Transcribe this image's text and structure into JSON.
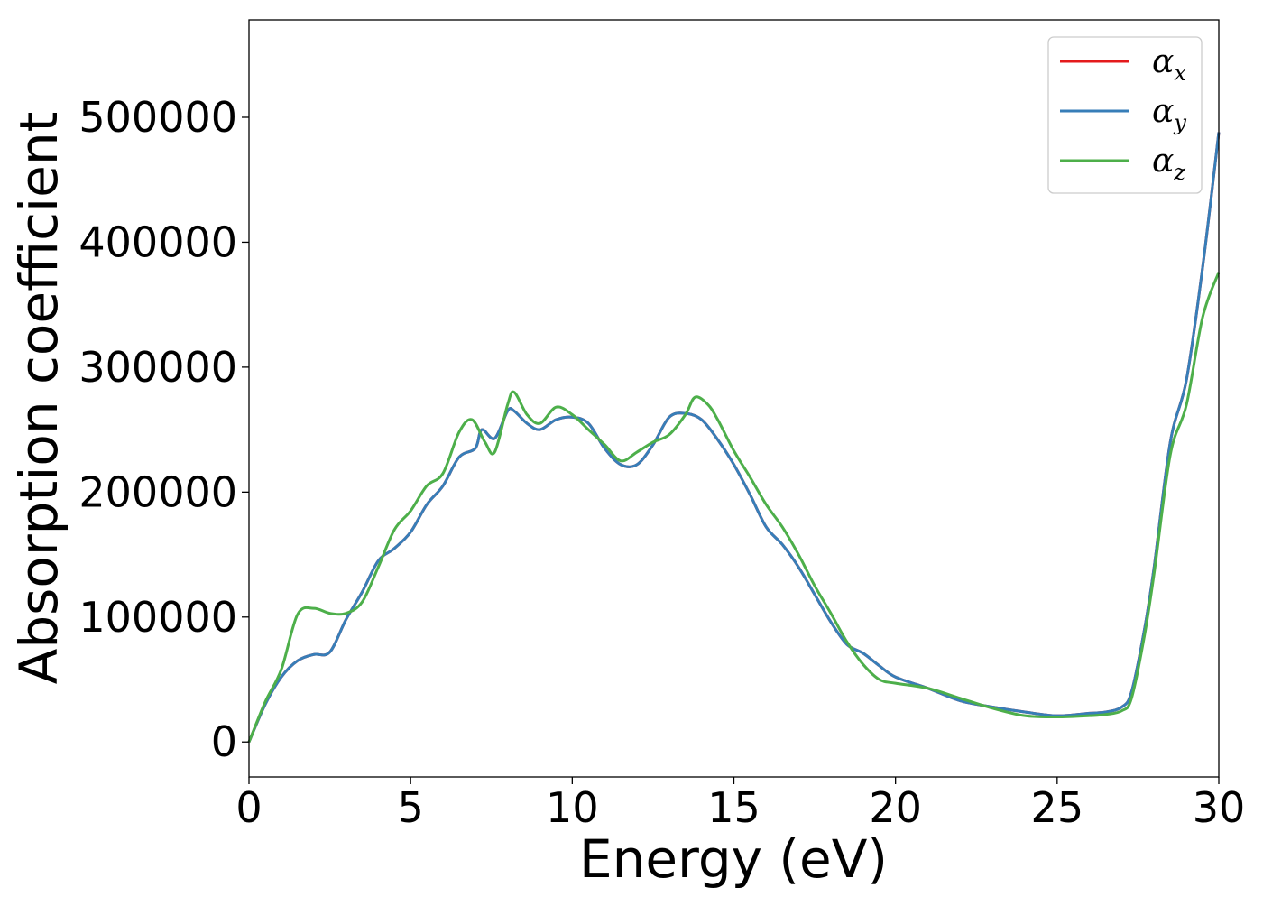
{
  "chart_data": {
    "type": "line",
    "title": "",
    "xlabel": "Energy (eV)",
    "ylabel": "Absorption coefficient",
    "xlim": [
      0,
      30
    ],
    "ylim": [
      -28000,
      578000
    ],
    "xticks": [
      0,
      5,
      10,
      15,
      20,
      25,
      30
    ],
    "xtick_labels": [
      "0",
      "5",
      "10",
      "15",
      "20",
      "25",
      "30"
    ],
    "yticks": [
      0,
      100000,
      200000,
      300000,
      400000,
      500000
    ],
    "ytick_labels": [
      "0",
      "100000",
      "200000",
      "300000",
      "400000",
      "500000"
    ],
    "grid": false,
    "legend_position": "top-right",
    "series": [
      {
        "name": "α",
        "subscript": "x",
        "color": "#e41a1c",
        "x": [
          0,
          0.5,
          1,
          1.5,
          2,
          2.5,
          3,
          3.5,
          4,
          4.5,
          5,
          5.5,
          6,
          6.5,
          7,
          7.2,
          7.6,
          8,
          8.2,
          8.6,
          9,
          9.5,
          10,
          10.5,
          11,
          11.5,
          12,
          12.5,
          13,
          13.5,
          14,
          14.5,
          15,
          15.5,
          16,
          16.5,
          17,
          17.5,
          18,
          18.5,
          19,
          19.5,
          20,
          21,
          22,
          23,
          24,
          25,
          26,
          26.5,
          27,
          27.3,
          27.7,
          28,
          28.5,
          29,
          29.5,
          30
        ],
        "y": [
          0,
          30000,
          52000,
          65000,
          70000,
          72000,
          98000,
          120000,
          145000,
          155000,
          168000,
          190000,
          205000,
          228000,
          235000,
          250000,
          243000,
          265000,
          265000,
          255000,
          250000,
          258000,
          260000,
          255000,
          235000,
          222000,
          222000,
          238000,
          260000,
          263000,
          258000,
          242000,
          222000,
          198000,
          172000,
          158000,
          140000,
          118000,
          96000,
          78000,
          71000,
          61000,
          52000,
          43000,
          33000,
          28000,
          24000,
          21000,
          23000,
          24000,
          28000,
          40000,
          90000,
          140000,
          240000,
          290000,
          380000,
          488000
        ]
      },
      {
        "name": "α",
        "subscript": "y",
        "color": "#377eb8",
        "x": [
          0,
          0.5,
          1,
          1.5,
          2,
          2.5,
          3,
          3.5,
          4,
          4.5,
          5,
          5.5,
          6,
          6.5,
          7,
          7.2,
          7.6,
          8,
          8.2,
          8.6,
          9,
          9.5,
          10,
          10.5,
          11,
          11.5,
          12,
          12.5,
          13,
          13.5,
          14,
          14.5,
          15,
          15.5,
          16,
          16.5,
          17,
          17.5,
          18,
          18.5,
          19,
          19.5,
          20,
          21,
          22,
          23,
          24,
          25,
          26,
          26.5,
          27,
          27.3,
          27.7,
          28,
          28.5,
          29,
          29.5,
          30
        ],
        "y": [
          0,
          30000,
          52000,
          65000,
          70000,
          72000,
          98000,
          120000,
          145000,
          155000,
          168000,
          190000,
          205000,
          228000,
          235000,
          250000,
          243000,
          265000,
          265000,
          255000,
          250000,
          258000,
          260000,
          255000,
          235000,
          222000,
          222000,
          238000,
          260000,
          263000,
          258000,
          242000,
          222000,
          198000,
          172000,
          158000,
          140000,
          118000,
          96000,
          78000,
          71000,
          61000,
          52000,
          43000,
          33000,
          28000,
          24000,
          21000,
          23000,
          24000,
          28000,
          40000,
          90000,
          140000,
          240000,
          290000,
          380000,
          488000
        ]
      },
      {
        "name": "α",
        "subscript": "z",
        "color": "#4daf4a",
        "x": [
          0,
          0.5,
          1,
          1.5,
          2,
          2.5,
          3,
          3.5,
          4,
          4.5,
          5,
          5.5,
          6,
          6.5,
          6.9,
          7.3,
          7.6,
          8,
          8.2,
          8.6,
          9,
          9.5,
          10,
          10.5,
          11,
          11.5,
          12,
          12.5,
          13,
          13.5,
          13.8,
          14.2,
          14.5,
          15,
          15.5,
          16,
          16.5,
          17,
          17.5,
          18,
          18.5,
          19,
          19.5,
          20,
          21,
          22,
          23,
          24,
          25,
          26,
          26.5,
          27,
          27.3,
          27.7,
          28,
          28.5,
          29,
          29.5,
          30
        ],
        "y": [
          0,
          32000,
          58000,
          102000,
          107000,
          103000,
          103000,
          112000,
          140000,
          170000,
          185000,
          205000,
          215000,
          248000,
          258000,
          240000,
          232000,
          270000,
          280000,
          262000,
          255000,
          268000,
          262000,
          250000,
          238000,
          225000,
          232000,
          240000,
          246000,
          262000,
          276000,
          270000,
          258000,
          233000,
          212000,
          190000,
          172000,
          150000,
          125000,
          103000,
          80000,
          62000,
          50000,
          47000,
          43000,
          35000,
          27000,
          21000,
          20000,
          21000,
          22000,
          25000,
          35000,
          85000,
          135000,
          230000,
          270000,
          340000,
          376000
        ]
      }
    ]
  }
}
